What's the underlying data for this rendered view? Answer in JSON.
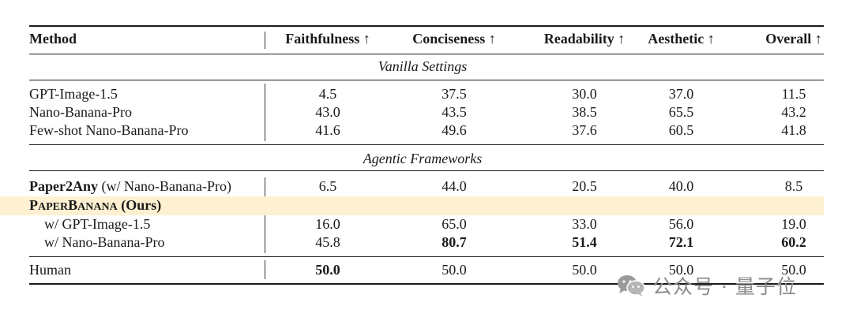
{
  "table": {
    "headers": {
      "method": "Method",
      "faithfulness": "Faithfulness ↑",
      "conciseness": "Conciseness ↑",
      "readability": "Readability ↑",
      "aesthetic": "Aesthetic ↑",
      "overall": "Overall ↑"
    },
    "sections": {
      "vanilla": "Vanilla Settings",
      "agentic": "Agentic Frameworks"
    },
    "rows": {
      "gpt_image": {
        "method": "GPT-Image-1.5",
        "values": [
          "4.5",
          "37.5",
          "30.0",
          "37.0",
          "11.5"
        ]
      },
      "nano_banana": {
        "method": "Nano-Banana-Pro",
        "values": [
          "43.0",
          "43.5",
          "38.5",
          "65.5",
          "43.2"
        ]
      },
      "fewshot": {
        "method": "Few-shot Nano-Banana-Pro",
        "values": [
          "41.6",
          "49.6",
          "37.6",
          "60.5",
          "41.8"
        ]
      },
      "paper2any": {
        "method_bold": "Paper2Any",
        "method_rest": " (w/ Nano-Banana-Pro)",
        "values": [
          "6.5",
          "44.0",
          "20.5",
          "40.0",
          "8.5"
        ]
      },
      "paperbanana": {
        "p": "P",
        "aper": "APER",
        "b": "B",
        "anana": "ANANA",
        "ours": " (Ours)"
      },
      "pb_gpt": {
        "method": "w/ GPT-Image-1.5",
        "values": [
          "16.0",
          "65.0",
          "33.0",
          "56.0",
          "19.0"
        ]
      },
      "pb_nano": {
        "method": "w/ Nano-Banana-Pro",
        "values": [
          "45.8",
          "80.7",
          "51.4",
          "72.1",
          "60.2"
        ]
      },
      "human": {
        "method": "Human",
        "values": [
          "50.0",
          "50.0",
          "50.0",
          "50.0",
          "50.0"
        ]
      }
    }
  },
  "watermark": {
    "text": "公众号 · 量子位",
    "icon": "wechat-icon"
  },
  "colors": {
    "highlight": "#fdf1d2",
    "rule": "#1a1a1a",
    "watermark": "#8a8a8a"
  }
}
